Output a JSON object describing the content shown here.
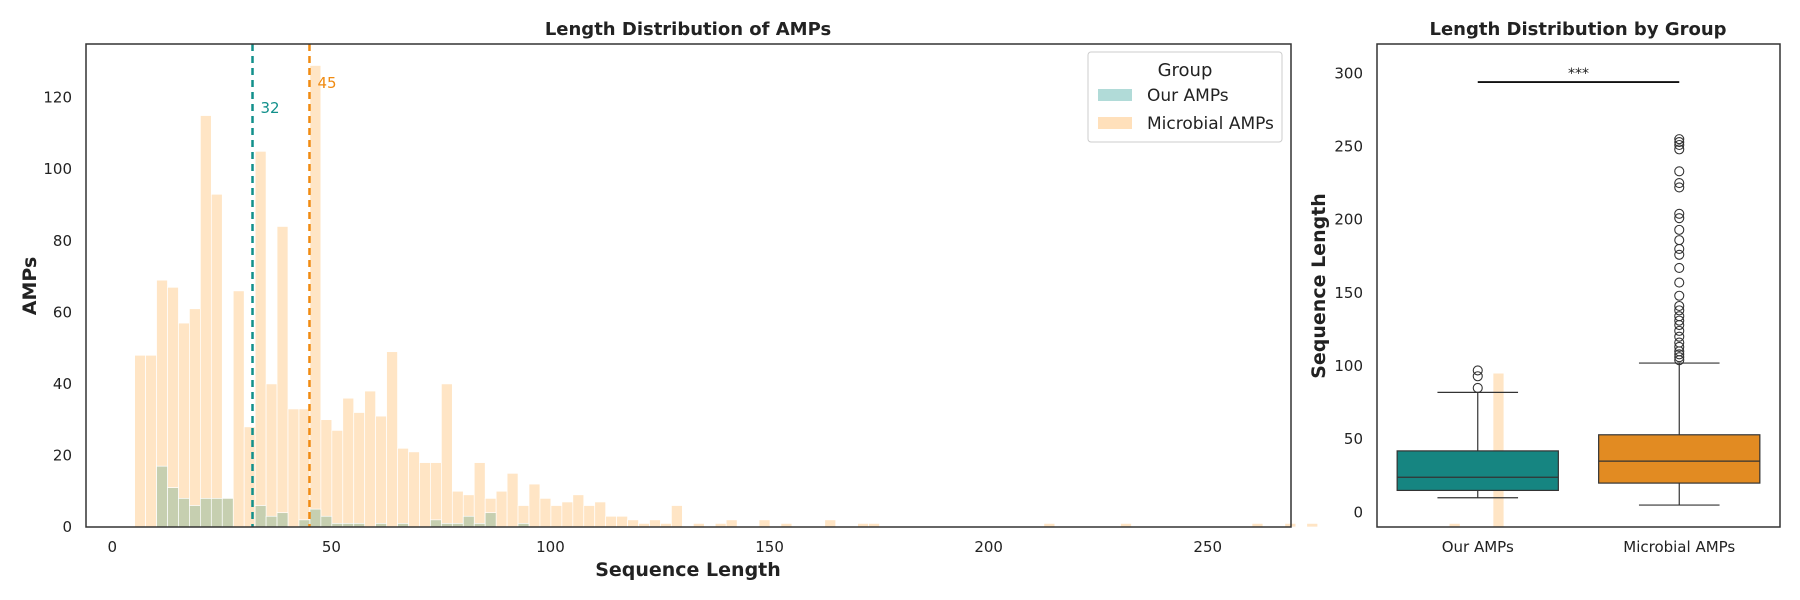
{
  "chart_data": [
    {
      "type": "histogram",
      "title": "Length Distribution of AMPs",
      "xlabel": "Sequence Length",
      "ylabel": "AMPs",
      "xlim": [
        -6,
        269
      ],
      "ylim": [
        0,
        135
      ],
      "xticks": [
        0,
        50,
        100,
        150,
        200,
        250
      ],
      "yticks": [
        0,
        20,
        40,
        60,
        80,
        100,
        120
      ],
      "bin_start": 5.1,
      "bin_width": 2.5,
      "grid": false,
      "legend": {
        "title": "Group",
        "placement": "top-right"
      },
      "series": [
        {
          "name": "Microbial AMPs",
          "color": "#ffe0bb",
          "values": [
            48,
            48,
            69,
            67,
            57,
            61,
            115,
            93,
            8,
            66,
            28,
            105,
            40,
            84,
            33,
            33,
            129,
            30,
            27,
            36,
            32,
            38,
            31,
            49,
            22,
            21,
            18,
            18,
            40,
            10,
            9,
            18,
            8,
            10,
            15,
            6,
            12,
            8,
            6,
            7,
            9,
            6,
            7,
            3,
            3,
            2,
            1,
            2,
            1,
            6,
            0,
            1,
            0,
            1,
            2,
            0,
            0,
            2,
            0,
            1,
            0,
            0,
            0,
            2,
            0,
            0,
            1,
            1,
            0,
            0,
            0,
            0,
            0,
            0,
            0,
            0,
            0,
            0,
            0,
            0,
            0,
            0,
            0,
            1,
            0,
            0,
            0,
            0,
            0,
            0,
            1,
            0,
            0,
            0,
            0,
            0,
            0,
            0,
            0,
            0,
            0,
            0,
            1,
            0,
            0,
            1,
            0,
            1,
            0,
            0,
            0,
            0,
            0,
            0,
            0,
            0,
            0,
            0,
            0,
            0,
            1,
            0,
            0,
            0,
            43
          ]
        },
        {
          "name": "Our AMPs",
          "color": "#b1dbd8",
          "values": [
            0,
            0,
            17,
            11,
            8,
            6,
            8,
            8,
            8,
            0,
            0,
            6,
            3,
            4,
            0,
            2,
            5,
            3,
            1,
            1,
            1,
            0,
            1,
            0,
            1,
            0,
            0,
            2,
            1,
            1,
            3,
            1,
            4,
            0,
            0,
            1,
            0,
            0,
            0,
            0,
            0,
            0,
            0,
            0,
            0,
            0,
            0,
            0,
            0,
            0,
            0,
            0,
            0,
            0,
            0,
            0,
            0,
            0,
            0,
            0,
            0,
            0,
            0,
            0,
            0,
            0,
            0,
            0,
            0,
            0,
            0,
            0,
            0,
            0,
            0,
            0,
            0,
            0,
            0,
            0,
            0,
            0,
            0,
            0,
            0,
            0,
            0,
            0,
            0,
            0,
            0,
            0,
            0,
            0,
            0,
            0,
            0,
            0,
            0,
            0,
            0,
            0,
            0,
            0,
            0,
            0,
            0,
            0,
            0,
            0,
            0,
            0,
            0,
            0,
            0,
            0,
            0,
            0,
            0,
            0,
            0,
            0,
            0,
            0,
            0
          ]
        }
      ],
      "vlines": [
        {
          "x": 32,
          "label": "32",
          "color": "#12908b"
        },
        {
          "x": 45,
          "label": "45",
          "color": "#f08b12"
        }
      ]
    },
    {
      "type": "box",
      "title": "Length Distribution by Group",
      "xlabel": "",
      "ylabel": "Sequence Length",
      "ylim": [
        -10,
        320
      ],
      "yticks": [
        0,
        50,
        100,
        150,
        200,
        250,
        300
      ],
      "categories": [
        "Our AMPs",
        "Microbial AMPs"
      ],
      "boxes": [
        {
          "name": "Our AMPs",
          "color": "#168581",
          "q1": 15,
          "median": 24,
          "q3": 42,
          "whisker_low": 10,
          "whisker_high": 82,
          "outliers": [
            85,
            93,
            97
          ]
        },
        {
          "name": "Microbial AMPs",
          "color": "#e28b22",
          "q1": 20,
          "median": 35,
          "q3": 53,
          "whisker_low": 5,
          "whisker_high": 102,
          "outliers": [
            104,
            106,
            108,
            110,
            113,
            116,
            120,
            124,
            128,
            131,
            134,
            138,
            141,
            148,
            157,
            167,
            176,
            180,
            186,
            193,
            201,
            204,
            222,
            225,
            233,
            248,
            251,
            253,
            255
          ]
        }
      ],
      "annotation": {
        "text": "***",
        "y": 294
      }
    }
  ]
}
